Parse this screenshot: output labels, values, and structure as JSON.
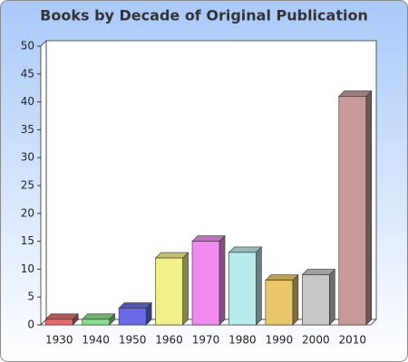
{
  "chart_data": {
    "type": "bar3d",
    "title": "Books by Decade of Original Publication",
    "categories": [
      "1930",
      "1940",
      "1950",
      "1960",
      "1970",
      "1980",
      "1990",
      "2000",
      "2010"
    ],
    "values": [
      1,
      1,
      3,
      12,
      15,
      13,
      8,
      9,
      41
    ],
    "colors": [
      "#e86a6a",
      "#84e084",
      "#6a6ae6",
      "#f2f08a",
      "#f28af2",
      "#b8ecec",
      "#eac66a",
      "#c8c8c8",
      "#c89a9a"
    ],
    "ylim": [
      0,
      50
    ],
    "yticks": [
      0,
      5,
      10,
      15,
      20,
      25,
      30,
      35,
      40,
      45,
      50
    ]
  }
}
